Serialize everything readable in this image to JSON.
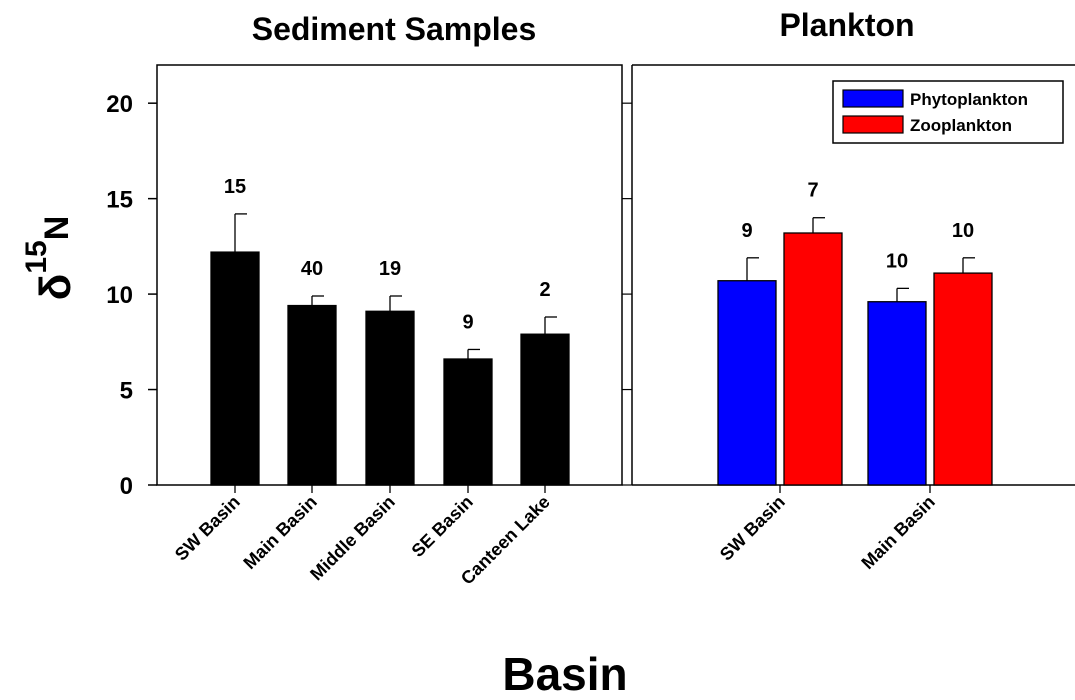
{
  "chart_data": [
    {
      "type": "bar",
      "title": "Sediment Samples",
      "categories": [
        "SW Basin",
        "Main Basin",
        "Middle Basin",
        "SE Basin",
        "Canteen Lake"
      ],
      "series": [
        {
          "values": [
            12.2,
            9.4,
            9.1,
            6.6,
            7.9
          ],
          "errors": [
            2.0,
            0.5,
            0.8,
            0.5,
            0.9
          ],
          "n_labels": [
            "15",
            "40",
            "19",
            "9",
            "2"
          ],
          "color": "#000000"
        }
      ],
      "ylim": [
        0,
        22
      ],
      "yticks": [
        "0",
        "5",
        "10",
        "15",
        "20"
      ]
    },
    {
      "type": "bar",
      "title": "Plankton",
      "categories": [
        "SW Basin",
        "Main Basin"
      ],
      "series": [
        {
          "name": "Phytoplankton",
          "values": [
            10.7,
            9.6
          ],
          "errors": [
            1.2,
            0.7
          ],
          "n_labels": [
            "9",
            "10"
          ],
          "color": "#0000ff"
        },
        {
          "name": "Zooplankton",
          "values": [
            13.2,
            11.1
          ],
          "errors": [
            0.8,
            0.8
          ],
          "n_labels": [
            "7",
            "10"
          ],
          "color": "#ff0000"
        }
      ],
      "ylim": [
        0,
        22
      ],
      "legend": "top-right"
    }
  ],
  "axes": {
    "ylabel_main": "δ",
    "ylabel_sup": "15",
    "ylabel_sub": "N",
    "xlabel": "Basin"
  }
}
